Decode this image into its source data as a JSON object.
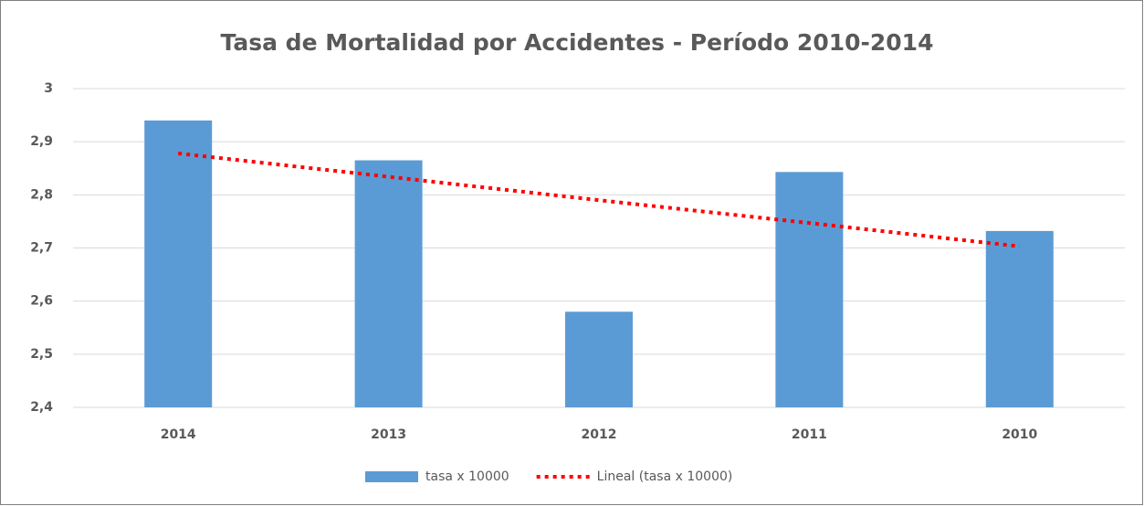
{
  "chart_data": {
    "type": "bar",
    "title": "Tasa de Mortalidad por Accidentes - Período 2010-2014",
    "categories": [
      "2014",
      "2013",
      "2012",
      "2011",
      "2010"
    ],
    "series": [
      {
        "name": "tasa x 10000",
        "type": "bar",
        "color": "#5b9bd5",
        "values": [
          2.94,
          2.865,
          2.58,
          2.843,
          2.732
        ]
      },
      {
        "name": "Lineal (tasa x 10000)",
        "type": "line",
        "dash": "dotted",
        "color": "#ff0000",
        "values": [
          2.878,
          2.834,
          2.79,
          2.747,
          2.703
        ]
      }
    ],
    "ylim": [
      2.4,
      3
    ],
    "yticks": [
      {
        "value": 2.4,
        "label": "2,4"
      },
      {
        "value": 2.5,
        "label": "2,5"
      },
      {
        "value": 2.6,
        "label": "2,6"
      },
      {
        "value": 2.7,
        "label": "2,7"
      },
      {
        "value": 2.8,
        "label": "2,8"
      },
      {
        "value": 2.9,
        "label": "2,9"
      },
      3
    ],
    "grid": true,
    "legend": "bottom"
  }
}
